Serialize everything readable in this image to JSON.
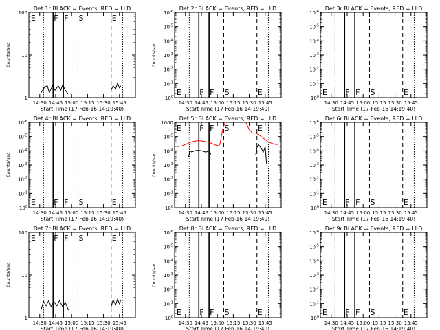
{
  "chart_data": [
    {
      "type": "line",
      "title": "Det 1r BLACK = Events, RED = LLD",
      "xlabel": "Start Time (17-Feb-16 14:19:40)",
      "ylabel": "Counts/sec",
      "yscale": "log",
      "ylim": [
        1,
        100
      ],
      "yticks": [
        "1",
        "10",
        "100"
      ],
      "xticks": [
        "14:30",
        "14:45",
        "15:00",
        "15:15",
        "15:30",
        "15:45"
      ],
      "markers": [
        "E",
        "F",
        "F",
        "S",
        "E"
      ],
      "series": [
        {
          "name": "Events",
          "color": "#000000",
          "points": [
            [
              14.52,
              1.3
            ],
            [
              14.58,
              1.8
            ],
            [
              14.62,
              1.9
            ],
            [
              14.65,
              1.3
            ],
            [
              14.7,
              1.9
            ],
            [
              14.74,
              1.5
            ],
            [
              14.79,
              1.9
            ],
            [
              14.83,
              1.5
            ],
            [
              14.86,
              2
            ],
            [
              14.9,
              1.5
            ],
            [
              14.95,
              1.2
            ]
          ]
        },
        {
          "name": "Events",
          "color": "#000000",
          "points": [
            [
              15.62,
              1.5
            ],
            [
              15.65,
              1.9
            ],
            [
              15.69,
              1.6
            ],
            [
              15.72,
              2.2
            ],
            [
              15.75,
              1.7
            ],
            [
              15.77,
              1.9
            ]
          ]
        }
      ]
    },
    {
      "type": "line",
      "title": "Det 2r BLACK = Events, RED = LLD",
      "xlabel": "Start Time (17-Feb-16 14:19:40)",
      "ylabel": "Counts/sec",
      "yscale": "log",
      "ylim": [
        1,
        1000000
      ],
      "yticks": [
        "10^0",
        "10^-1",
        "10^-2",
        "10^-3",
        "10^-4",
        "10^-5",
        "10^-6"
      ],
      "xticks": [
        "14:30",
        "14:45",
        "15:00",
        "15:15",
        "15:30",
        "15:45"
      ],
      "markers": [
        "E",
        "F",
        "F",
        "S",
        "E"
      ],
      "series": []
    },
    {
      "type": "line",
      "title": "Det 3r BLACK = Events, RED = LLD",
      "xlabel": "Start Time (17-Feb-16 14:19:40)",
      "ylabel": "",
      "yscale": "log",
      "ylim": [
        1,
        1000000
      ],
      "yticks": [
        "10^0",
        "10^-1",
        "10^-2",
        "10^-3",
        "10^-4",
        "10^-5",
        "10^-6"
      ],
      "xticks": [
        "14:30",
        "14:45",
        "15:00",
        "15:15",
        "15:30",
        "15:45"
      ],
      "markers": [
        "E",
        "F",
        "F",
        "S",
        "E"
      ],
      "series": []
    },
    {
      "type": "line",
      "title": "Det 4r BLACK = Events, RED = LLD",
      "xlabel": "Start Time (17-Feb-16 14:19:40)",
      "ylabel": "Counts/sec",
      "yscale": "log",
      "ylim": [
        1,
        1000000
      ],
      "yticks": [
        "10^0",
        "10^-1",
        "10^-2",
        "10^-3",
        "10^-4",
        "10^-5",
        "10^-6"
      ],
      "xticks": [
        "14:30",
        "14:45",
        "15:00",
        "15:15",
        "15:30",
        "15:45"
      ],
      "markers": [
        "E",
        "F",
        "F",
        "S",
        "E"
      ],
      "series": []
    },
    {
      "type": "line",
      "title": "Det 5r BLACK = Events, RED = LLD",
      "xlabel": "Start Time (17-Feb-16 14:19:40)",
      "ylabel": "Counts/sec",
      "yscale": "log",
      "ylim": [
        1,
        1000
      ],
      "yticks": [
        "10^0",
        "10^-1",
        "10^-2",
        "10^-3",
        "10^-4",
        "10^-5",
        "1000"
      ],
      "xticks": [
        "14:30",
        "14:45",
        "15:00",
        "15:15",
        "15:30",
        "15:45"
      ],
      "markers": [
        "E",
        "F",
        "F",
        "S",
        "E"
      ],
      "series": [
        {
          "name": "LLD",
          "color": "#ff0000",
          "points": [
            [
              14.37,
              140
            ],
            [
              14.45,
              150
            ],
            [
              14.52,
              175
            ],
            [
              14.58,
              200
            ],
            [
              14.63,
              215
            ],
            [
              14.68,
              225
            ],
            [
              14.73,
              225
            ],
            [
              14.79,
              215
            ],
            [
              14.85,
              200
            ],
            [
              14.92,
              180
            ],
            [
              14.97,
              160
            ],
            [
              15.02,
              150
            ],
            [
              15.04,
              170
            ],
            [
              15.06,
              300
            ],
            [
              15.09,
              650
            ],
            [
              15.12,
              950
            ]
          ]
        },
        {
          "name": "LLD",
          "color": "#ff0000",
          "points": [
            [
              15.45,
              950
            ],
            [
              15.5,
              550
            ],
            [
              15.55,
              420
            ],
            [
              15.6,
              420
            ],
            [
              15.65,
              370
            ],
            [
              15.7,
              300
            ],
            [
              15.75,
              250
            ],
            [
              15.79,
              210
            ],
            [
              15.85,
              185
            ],
            [
              15.9,
              170
            ],
            [
              15.95,
              165
            ]
          ]
        },
        {
          "name": "Events",
          "color": "#000000",
          "points": [
            [
              14.55,
              60
            ],
            [
              14.57,
              100
            ],
            [
              14.6,
              90
            ],
            [
              14.64,
              100
            ],
            [
              14.7,
              105
            ],
            [
              14.75,
              100
            ],
            [
              14.82,
              90
            ],
            [
              14.87,
              100
            ],
            [
              14.9,
              75
            ]
          ]
        },
        {
          "name": "Events",
          "color": "#000000",
          "points": [
            [
              15.6,
              70
            ],
            [
              15.62,
              130
            ],
            [
              15.65,
              160
            ],
            [
              15.69,
              120
            ],
            [
              15.72,
              90
            ],
            [
              15.75,
              140
            ],
            [
              15.77,
              35
            ]
          ]
        }
      ]
    },
    {
      "type": "line",
      "title": "Det 6r BLACK = Events, RED = LLD",
      "xlabel": "Start Time (17-Feb-16 14:19:40)",
      "ylabel": "",
      "yscale": "log",
      "ylim": [
        1,
        1000000
      ],
      "yticks": [
        "10^0",
        "10^-1",
        "10^-2",
        "10^-3",
        "10^-4",
        "10^-5",
        "10^-6"
      ],
      "xticks": [
        "14:30",
        "14:45",
        "15:00",
        "15:15",
        "15:30",
        "15:45"
      ],
      "markers": [
        "E",
        "F",
        "F",
        "S",
        "E"
      ],
      "series": []
    },
    {
      "type": "line",
      "title": "Det 7r BLACK = Events, RED = LLD",
      "xlabel": "Start Time (17-Feb-16 14:19:40)",
      "ylabel": "Counts/sec",
      "yscale": "log",
      "ylim": [
        1,
        100
      ],
      "yticks": [
        "1",
        "10",
        "100"
      ],
      "xticks": [
        "14:30",
        "14:45",
        "15:00",
        "15:15",
        "15:30",
        "15:45"
      ],
      "markers": [
        "E",
        "F",
        "F",
        "S",
        "E"
      ],
      "series": [
        {
          "name": "Events",
          "color": "#000000",
          "points": [
            [
              14.52,
              1.5
            ],
            [
              14.56,
              2.4
            ],
            [
              14.6,
              1.9
            ],
            [
              14.64,
              2.5
            ],
            [
              14.68,
              1.8
            ],
            [
              14.72,
              2.4
            ],
            [
              14.77,
              1.9
            ],
            [
              14.81,
              2.5
            ],
            [
              14.86,
              1.8
            ],
            [
              14.9,
              2.3
            ],
            [
              14.95,
              1.5
            ]
          ]
        },
        {
          "name": "Events",
          "color": "#000000",
          "points": [
            [
              15.62,
              1.8
            ],
            [
              15.65,
              2.6
            ],
            [
              15.69,
              2
            ],
            [
              15.72,
              2.7
            ],
            [
              15.75,
              2.1
            ],
            [
              15.77,
              2.6
            ]
          ]
        }
      ]
    },
    {
      "type": "line",
      "title": "Det 8r BLACK = Events, RED = LLD",
      "xlabel": "Start Time (17-Feb-16 14:19:40)",
      "ylabel": "Counts/sec",
      "yscale": "log",
      "ylim": [
        1,
        1000000
      ],
      "yticks": [
        "10^0",
        "10^-1",
        "10^-2",
        "10^-3",
        "10^-4",
        "10^-5",
        "10^-6"
      ],
      "xticks": [
        "14:30",
        "14:45",
        "15:00",
        "15:15",
        "15:30",
        "15:45"
      ],
      "markers": [
        "E",
        "F",
        "F",
        "S",
        "E"
      ],
      "series": []
    },
    {
      "type": "line",
      "title": "Det 9r BLACK = Events, RED = LLD",
      "xlabel": "Start Time (17-Feb-16 14:19:40)",
      "ylabel": "",
      "yscale": "log",
      "ylim": [
        1,
        1000000
      ],
      "yticks": [
        "10^0",
        "10^-1",
        "10^-2",
        "10^-3",
        "10^-4",
        "10^-5",
        "10^-6"
      ],
      "xticks": [
        "14:30",
        "14:45",
        "15:00",
        "15:15",
        "15:30",
        "15:45"
      ],
      "markers": [
        "E",
        "F",
        "F",
        "S",
        "E"
      ],
      "series": []
    }
  ]
}
